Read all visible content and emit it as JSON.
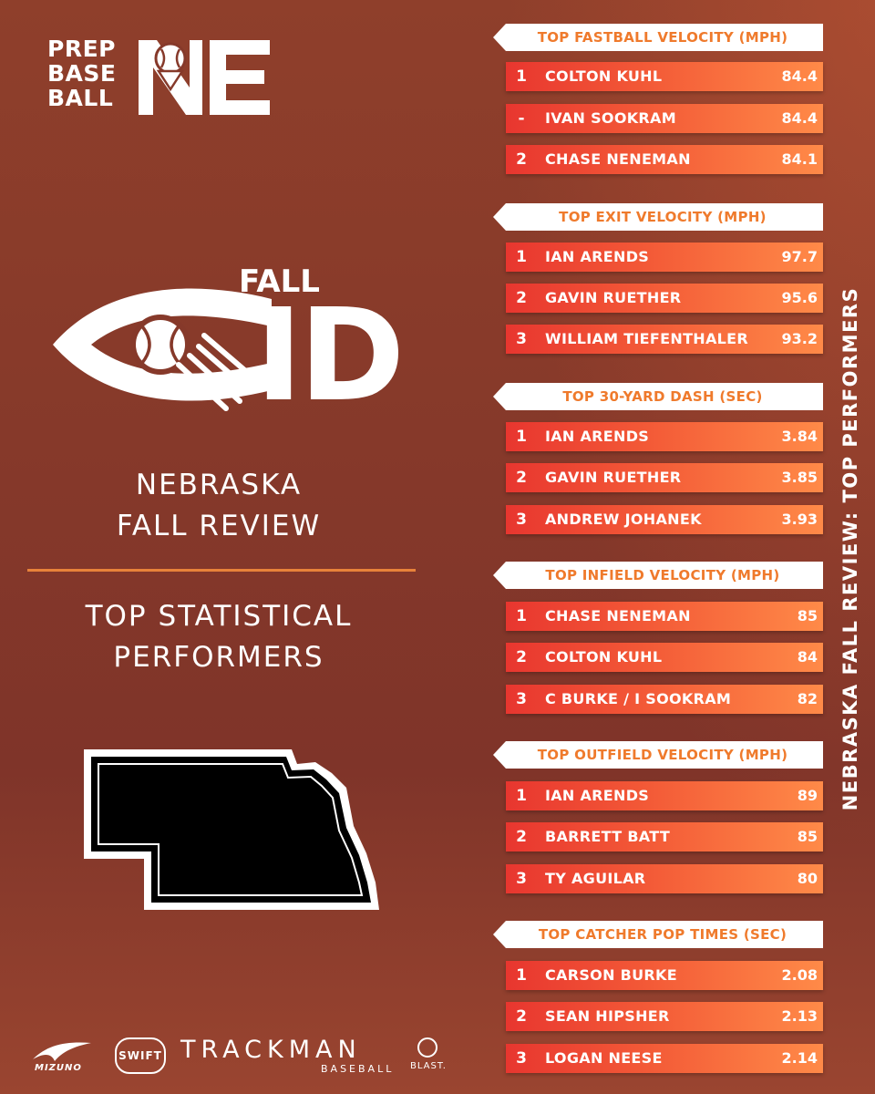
{
  "brand": {
    "logo_lines": [
      "PREP",
      "BASE",
      "BALL"
    ],
    "logo_suffix": "NE"
  },
  "event": {
    "logo_fall": "FALL",
    "logo_id": "ID",
    "title_line1": "NEBRASKA",
    "title_line2": "FALL REVIEW",
    "subtitle_line1": "TOP STATISTICAL",
    "subtitle_line2": "PERFORMERS"
  },
  "side_title": "NEBRASKA FALL REVIEW: TOP PERFORMERS",
  "sponsors": {
    "mizuno": "MIZUNO",
    "swift": "SWIFT",
    "trackman": "TRACKMAN",
    "trackman_sub": "BASEBALL",
    "blast": "BLAST."
  },
  "colors": {
    "background": "#86392a",
    "accent": "#ef7a2c",
    "row_start": "#e8362f",
    "row_end": "#ff8a48"
  },
  "categories": [
    {
      "title": "TOP FASTBALL VELOCITY (MPH)",
      "rows": [
        {
          "rank": "1",
          "name": "COLTON KUHL",
          "value": "84.4"
        },
        {
          "rank": "-",
          "name": "IVAN SOOKRAM",
          "value": "84.4"
        },
        {
          "rank": "2",
          "name": "CHASE NENEMAN",
          "value": "84.1"
        }
      ]
    },
    {
      "title": "TOP EXIT VELOCITY (MPH)",
      "rows": [
        {
          "rank": "1",
          "name": "IAN ARENDS",
          "value": "97.7"
        },
        {
          "rank": "2",
          "name": "GAVIN RUETHER",
          "value": "95.6"
        },
        {
          "rank": "3",
          "name": "WILLIAM TIEFENTHALER",
          "value": "93.2"
        }
      ]
    },
    {
      "title": "TOP 30-YARD DASH (SEC)",
      "rows": [
        {
          "rank": "1",
          "name": "IAN ARENDS",
          "value": "3.84"
        },
        {
          "rank": "2",
          "name": "GAVIN RUETHER",
          "value": "3.85"
        },
        {
          "rank": "3",
          "name": "ANDREW JOHANEK",
          "value": "3.93"
        }
      ]
    },
    {
      "title": "TOP INFIELD VELOCITY (MPH)",
      "rows": [
        {
          "rank": "1",
          "name": "CHASE NENEMAN",
          "value": "85"
        },
        {
          "rank": "2",
          "name": "COLTON KUHL",
          "value": "84"
        },
        {
          "rank": "3",
          "name": "C BURKE / I SOOKRAM",
          "value": "82"
        }
      ]
    },
    {
      "title": "TOP OUTFIELD VELOCITY (MPH)",
      "rows": [
        {
          "rank": "1",
          "name": "IAN ARENDS",
          "value": "89"
        },
        {
          "rank": "2",
          "name": "BARRETT BATT",
          "value": "85"
        },
        {
          "rank": "3",
          "name": "TY AGUILAR",
          "value": "80"
        }
      ]
    },
    {
      "title": "TOP CATCHER POP TIMES (SEC)",
      "rows": [
        {
          "rank": "1",
          "name": "CARSON BURKE",
          "value": "2.08"
        },
        {
          "rank": "2",
          "name": "SEAN HIPSHER",
          "value": "2.13"
        },
        {
          "rank": "3",
          "name": "LOGAN NEESE",
          "value": "2.14"
        }
      ]
    }
  ]
}
